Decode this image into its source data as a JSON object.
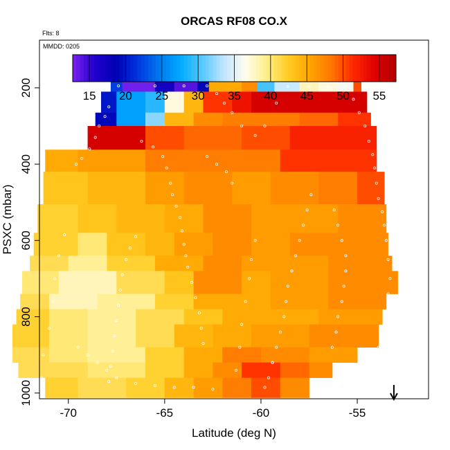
{
  "chart_data": {
    "type": "heatmap",
    "title": "ORCAS RF08 CO.X",
    "annotations": [
      "Flts: 8",
      "MMDD: 0205"
    ],
    "xlabel": "Latitude (deg N)",
    "ylabel": "PSXC (mbar)",
    "xlim": [
      -71.5,
      -51.3
    ],
    "ylim": [
      1015,
      75
    ],
    "y_reversed": true,
    "x_ticks": [
      -70,
      -65,
      -60,
      -55
    ],
    "y_ticks": [
      200,
      400,
      600,
      800,
      1000
    ],
    "colorbar": {
      "range": [
        12.7,
        57.3
      ],
      "ticks": [
        15,
        20,
        25,
        30,
        35,
        40,
        45,
        50,
        55
      ],
      "colors": [
        "#7a22ee",
        "#2200cc",
        "#0000b4",
        "#0033dd",
        "#0077ee",
        "#00aaff",
        "#55c8ff",
        "#bfe5ff",
        "#fffdf0",
        "#ffee88",
        "#ffcc22",
        "#ffa500",
        "#ff7700",
        "#ff2a00",
        "#e00000",
        "#b00000"
      ]
    },
    "grid": false,
    "legend": "none",
    "arrow_marker": {
      "lat": -53.1,
      "direction": "down"
    },
    "rows": [
      {
        "p": [
          175,
          210
        ],
        "cells": [
          [
            -67.8,
            -67.2,
            22
          ],
          [
            -67.2,
            -65.5,
            13
          ],
          [
            -65.5,
            -64.5,
            17
          ],
          [
            -64.5,
            -63.3,
            14
          ],
          [
            -63.3,
            -62.7,
            19
          ],
          [
            -62.7,
            -61.0,
            45
          ],
          [
            -61.0,
            -60.2,
            47
          ],
          [
            -60.2,
            -59.3,
            30
          ],
          [
            -59.3,
            -58.0,
            34
          ],
          [
            -58.0,
            -57.0,
            38
          ],
          [
            -57.0,
            -56.0,
            37
          ],
          [
            -56.0,
            -55.2,
            36
          ],
          [
            -55.2,
            -54.8,
            50
          ]
        ]
      },
      {
        "p": [
          210,
          265
        ],
        "cells": [
          [
            -68.3,
            -67.5,
            20
          ],
          [
            -67.5,
            -66.0,
            27
          ],
          [
            -66.0,
            -65.0,
            29
          ],
          [
            -65.0,
            -64.0,
            37
          ],
          [
            -64.0,
            -63.0,
            44
          ],
          [
            -63.0,
            -61.5,
            51
          ],
          [
            -61.5,
            -60.5,
            53
          ],
          [
            -60.5,
            -58.0,
            55
          ],
          [
            -58.0,
            -56.0,
            55
          ],
          [
            -56.0,
            -54.5,
            55
          ]
        ]
      },
      {
        "p": [
          265,
          300
        ],
        "cells": [
          [
            -68.6,
            -67.5,
            19
          ],
          [
            -67.5,
            -66.0,
            27
          ],
          [
            -66.0,
            -65.0,
            32
          ],
          [
            -65.0,
            -63.5,
            44
          ],
          [
            -63.5,
            -62.0,
            47
          ],
          [
            -62.0,
            -58.0,
            48
          ],
          [
            -58.0,
            -56.0,
            49
          ],
          [
            -56.0,
            -54.3,
            51
          ]
        ]
      },
      {
        "p": [
          300,
          362
        ],
        "cells": [
          [
            -69.0,
            -67.5,
            55
          ],
          [
            -67.5,
            -66.0,
            55
          ],
          [
            -66.0,
            -64.0,
            50
          ],
          [
            -64.0,
            -61.0,
            49
          ],
          [
            -61.0,
            -58.5,
            50
          ],
          [
            -58.5,
            -56.0,
            52
          ],
          [
            -56.0,
            -54.0,
            52
          ]
        ]
      },
      {
        "p": [
          362,
          420
        ],
        "cells": [
          [
            -71.2,
            -69.5,
            45
          ],
          [
            -69.5,
            -66.0,
            46
          ],
          [
            -66.0,
            -64.5,
            48
          ],
          [
            -64.5,
            -61.5,
            48
          ],
          [
            -61.5,
            -59.0,
            48
          ],
          [
            -59.0,
            -56.5,
            51
          ],
          [
            -56.5,
            -54.0,
            51
          ]
        ]
      },
      {
        "p": [
          420,
          505
        ],
        "cells": [
          [
            -71.3,
            -69.0,
            43
          ],
          [
            -69.0,
            -66.0,
            44
          ],
          [
            -66.0,
            -64.0,
            46
          ],
          [
            -64.0,
            -61.5,
            47
          ],
          [
            -61.5,
            -59.5,
            46
          ],
          [
            -59.5,
            -57.0,
            47
          ],
          [
            -57.0,
            -55.0,
            48
          ],
          [
            -55.0,
            -53.6,
            50
          ]
        ]
      },
      {
        "p": [
          505,
          580
        ],
        "cells": [
          [
            -71.6,
            -69.5,
            42
          ],
          [
            -69.5,
            -67.5,
            43
          ],
          [
            -67.5,
            -65.0,
            44
          ],
          [
            -65.0,
            -63.0,
            45
          ],
          [
            -63.0,
            -60.5,
            47
          ],
          [
            -60.5,
            -58.5,
            46
          ],
          [
            -58.5,
            -56.0,
            46
          ],
          [
            -56.0,
            -53.5,
            47
          ]
        ]
      },
      {
        "p": [
          580,
          640
        ],
        "cells": [
          [
            -71.8,
            -69.5,
            42
          ],
          [
            -69.5,
            -68.0,
            40
          ],
          [
            -68.0,
            -66.0,
            43
          ],
          [
            -66.0,
            -64.5,
            44
          ],
          [
            -64.5,
            -62.5,
            46
          ],
          [
            -62.5,
            -60.5,
            47
          ],
          [
            -60.5,
            -58.5,
            46
          ],
          [
            -58.5,
            -56.0,
            47
          ],
          [
            -56.0,
            -53.4,
            47
          ]
        ]
      },
      {
        "p": [
          640,
          680
        ],
        "cells": [
          [
            -72.0,
            -70.0,
            41
          ],
          [
            -70.0,
            -68.0,
            39
          ],
          [
            -68.0,
            -65.5,
            42
          ],
          [
            -65.5,
            -63.0,
            45
          ],
          [
            -63.0,
            -61.0,
            47
          ],
          [
            -61.0,
            -59.0,
            46
          ],
          [
            -59.0,
            -56.5,
            46
          ],
          [
            -56.5,
            -53.2,
            47
          ]
        ]
      },
      {
        "p": [
          680,
          740
        ],
        "cells": [
          [
            -72.4,
            -70.5,
            40
          ],
          [
            -70.5,
            -67.5,
            38
          ],
          [
            -67.5,
            -65.0,
            41
          ],
          [
            -65.0,
            -63.5,
            43
          ],
          [
            -63.5,
            -61.0,
            47
          ],
          [
            -61.0,
            -59.5,
            45
          ],
          [
            -59.5,
            -56.5,
            46
          ],
          [
            -56.5,
            -52.9,
            47
          ]
        ]
      },
      {
        "p": [
          740,
          780
        ],
        "cells": [
          [
            -72.5,
            -71.0,
            41
          ],
          [
            -71.0,
            -68.5,
            38
          ],
          [
            -68.5,
            -65.5,
            39
          ],
          [
            -65.5,
            -63.5,
            42
          ],
          [
            -63.5,
            -61.5,
            45
          ],
          [
            -61.5,
            -59.5,
            45
          ],
          [
            -59.5,
            -56.5,
            46
          ],
          [
            -56.5,
            -53.5,
            47
          ]
        ]
      },
      {
        "p": [
          780,
          820
        ],
        "cells": [
          [
            -72.7,
            -71.0,
            42
          ],
          [
            -71.0,
            -69.0,
            40
          ],
          [
            -69.0,
            -66.5,
            39
          ],
          [
            -66.5,
            -64.0,
            41
          ],
          [
            -64.0,
            -62.0,
            43
          ],
          [
            -62.0,
            -60.0,
            45
          ],
          [
            -60.0,
            -57.0,
            45
          ],
          [
            -57.0,
            -53.7,
            46
          ]
        ]
      },
      {
        "p": [
          820,
          880
        ],
        "cells": [
          [
            -72.9,
            -71.0,
            42
          ],
          [
            -71.0,
            -69.0,
            40
          ],
          [
            -69.0,
            -66.5,
            39
          ],
          [
            -66.5,
            -64.5,
            41
          ],
          [
            -64.5,
            -62.5,
            44
          ],
          [
            -62.5,
            -60.5,
            45
          ],
          [
            -60.5,
            -57.5,
            46
          ],
          [
            -57.5,
            -53.9,
            47
          ]
        ]
      },
      {
        "p": [
          880,
          920
        ],
        "cells": [
          [
            -72.9,
            -71.0,
            41
          ],
          [
            -71.0,
            -69.0,
            40
          ],
          [
            -69.0,
            -66.0,
            39
          ],
          [
            -66.0,
            -64.0,
            42
          ],
          [
            -64.0,
            -62.0,
            45
          ],
          [
            -62.0,
            -60.0,
            48
          ],
          [
            -60.0,
            -57.5,
            47
          ],
          [
            -57.5,
            -55.0,
            46
          ]
        ]
      },
      {
        "p": [
          920,
          960
        ],
        "cells": [
          [
            -72.6,
            -71.0,
            41
          ],
          [
            -71.0,
            -69.0,
            41
          ],
          [
            -69.0,
            -66.0,
            40
          ],
          [
            -66.0,
            -64.0,
            42
          ],
          [
            -64.0,
            -62.5,
            45
          ],
          [
            -62.5,
            -61.0,
            47
          ],
          [
            -61.0,
            -59.0,
            51
          ],
          [
            -59.0,
            -57.5,
            49
          ],
          [
            -57.5,
            -56.3,
            47
          ]
        ]
      },
      {
        "p": [
          960,
          1012
        ],
        "cells": [
          [
            -71.2,
            -69.5,
            42
          ],
          [
            -69.5,
            -67.0,
            41
          ],
          [
            -67.0,
            -65.0,
            42
          ],
          [
            -65.0,
            -63.5,
            44
          ],
          [
            -63.5,
            -62.0,
            46
          ],
          [
            -62.0,
            -60.5,
            48
          ],
          [
            -60.5,
            -59.0,
            50
          ],
          [
            -59.0,
            -57.5,
            47
          ]
        ]
      }
    ],
    "flight_track": [
      [
        -67.4,
        195
      ],
      [
        -65.5,
        195
      ],
      [
        -64.0,
        195
      ],
      [
        -62.8,
        195
      ],
      [
        -62.3,
        215
      ],
      [
        -61.9,
        240
      ],
      [
        -61.5,
        265
      ],
      [
        -61.0,
        300
      ],
      [
        -60.3,
        325
      ],
      [
        -59.8,
        300
      ],
      [
        -59.2,
        240
      ],
      [
        -58.6,
        196
      ],
      [
        -57.5,
        196
      ],
      [
        -56.5,
        196
      ],
      [
        -55.6,
        196
      ],
      [
        -55.2,
        230
      ],
      [
        -54.9,
        265
      ],
      [
        -54.6,
        300
      ],
      [
        -54.4,
        340
      ],
      [
        -54.2,
        375
      ],
      [
        -54.1,
        410
      ],
      [
        -54.0,
        450
      ],
      [
        -53.9,
        490
      ],
      [
        -53.7,
        525
      ],
      [
        -53.6,
        560
      ],
      [
        -53.5,
        600
      ],
      [
        -53.4,
        650
      ],
      [
        -53.3,
        700
      ],
      [
        -53.4,
        740
      ],
      [
        -53.5,
        790
      ],
      [
        -53.7,
        840
      ],
      [
        -53.9,
        880
      ],
      [
        -67.9,
        250
      ],
      [
        -68.1,
        275
      ],
      [
        -68.4,
        300
      ],
      [
        -68.6,
        330
      ],
      [
        -68.9,
        360
      ],
      [
        -69.3,
        385
      ],
      [
        -69.6,
        400
      ],
      [
        -66.2,
        340
      ],
      [
        -65.6,
        355
      ],
      [
        -65.1,
        380
      ],
      [
        -64.9,
        410
      ],
      [
        -64.7,
        450
      ],
      [
        -64.6,
        480
      ],
      [
        -64.4,
        510
      ],
      [
        -64.2,
        540
      ],
      [
        -64.1,
        575
      ],
      [
        -64.0,
        610
      ],
      [
        -63.9,
        640
      ],
      [
        -63.8,
        670
      ],
      [
        -63.6,
        710
      ],
      [
        -63.4,
        750
      ],
      [
        -63.2,
        790
      ],
      [
        -63.1,
        830
      ],
      [
        -63.0,
        870
      ],
      [
        -57.4,
        480
      ],
      [
        -57.6,
        520
      ],
      [
        -57.8,
        560
      ],
      [
        -58.0,
        600
      ],
      [
        -58.2,
        640
      ],
      [
        -58.4,
        680
      ],
      [
        -58.6,
        720
      ],
      [
        -58.7,
        760
      ],
      [
        -58.8,
        800
      ],
      [
        -59.0,
        840
      ],
      [
        -59.2,
        880
      ],
      [
        -59.4,
        920
      ],
      [
        -59.6,
        960
      ],
      [
        -59.8,
        985
      ],
      [
        -66.5,
        590
      ],
      [
        -66.8,
        620
      ],
      [
        -67.0,
        650
      ],
      [
        -67.2,
        690
      ],
      [
        -67.3,
        730
      ],
      [
        -67.4,
        770
      ],
      [
        -67.5,
        810
      ],
      [
        -67.6,
        850
      ],
      [
        -67.7,
        890
      ],
      [
        -67.8,
        930
      ],
      [
        -67.9,
        970
      ],
      [
        -70.2,
        585
      ],
      [
        -70.5,
        640
      ],
      [
        -70.7,
        700
      ],
      [
        -70.8,
        760
      ],
      [
        -71.0,
        830
      ],
      [
        -71.3,
        900
      ],
      [
        -71.4,
        960
      ],
      [
        -60.3,
        600
      ],
      [
        -60.5,
        650
      ],
      [
        -60.6,
        700
      ],
      [
        -60.8,
        760
      ],
      [
        -61.0,
        820
      ],
      [
        -61.1,
        880
      ],
      [
        -61.3,
        940
      ],
      [
        -56.2,
        520
      ],
      [
        -56.0,
        560
      ],
      [
        -55.8,
        600
      ],
      [
        -55.6,
        640
      ],
      [
        -55.6,
        680
      ],
      [
        -55.7,
        720
      ],
      [
        -55.8,
        760
      ],
      [
        -56.0,
        800
      ],
      [
        -56.1,
        840
      ],
      [
        -56.3,
        880
      ],
      [
        -69.5,
        880
      ],
      [
        -69.0,
        900
      ],
      [
        -68.5,
        920
      ],
      [
        -68.0,
        940
      ],
      [
        -67.5,
        960
      ],
      [
        -66.5,
        975
      ],
      [
        -65.5,
        980
      ],
      [
        -64.5,
        985
      ],
      [
        -63.5,
        985
      ],
      [
        -62.5,
        990
      ],
      [
        -62.8,
        380
      ],
      [
        -62.3,
        400
      ],
      [
        -61.8,
        420
      ],
      [
        -61.5,
        450
      ]
    ]
  }
}
